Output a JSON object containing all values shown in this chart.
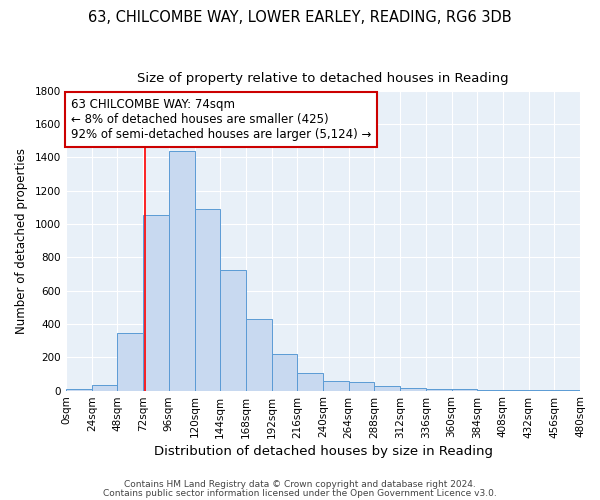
{
  "title": "63, CHILCOMBE WAY, LOWER EARLEY, READING, RG6 3DB",
  "subtitle": "Size of property relative to detached houses in Reading",
  "xlabel": "Distribution of detached houses by size in Reading",
  "ylabel": "Number of detached properties",
  "footer_line1": "Contains HM Land Registry data © Crown copyright and database right 2024.",
  "footer_line2": "Contains public sector information licensed under the Open Government Licence v3.0.",
  "bin_edges": [
    0,
    24,
    48,
    72,
    96,
    120,
    144,
    168,
    192,
    216,
    240,
    264,
    288,
    312,
    336,
    360,
    384,
    408,
    432,
    456,
    480
  ],
  "bar_values": [
    10,
    35,
    345,
    1055,
    1440,
    1090,
    725,
    430,
    220,
    105,
    55,
    50,
    28,
    18,
    12,
    8,
    5,
    3,
    2,
    2
  ],
  "bar_color": "#c8d9f0",
  "bar_edge_color": "#5b9bd5",
  "background_color": "#ffffff",
  "plot_bg_color": "#e8f0f8",
  "red_line_x": 74,
  "annotation_line1": "63 CHILCOMBE WAY: 74sqm",
  "annotation_line2": "← 8% of detached houses are smaller (425)",
  "annotation_line3": "92% of semi-detached houses are larger (5,124) →",
  "annotation_box_color": "#ffffff",
  "annotation_box_edge_color": "#cc0000",
  "ylim": [
    0,
    1800
  ],
  "yticks": [
    0,
    200,
    400,
    600,
    800,
    1000,
    1200,
    1400,
    1600,
    1800
  ],
  "title_fontsize": 10.5,
  "subtitle_fontsize": 9.5,
  "xlabel_fontsize": 9.5,
  "ylabel_fontsize": 8.5,
  "tick_label_fontsize": 7.5,
  "annotation_fontsize": 8.5,
  "footer_fontsize": 6.5
}
